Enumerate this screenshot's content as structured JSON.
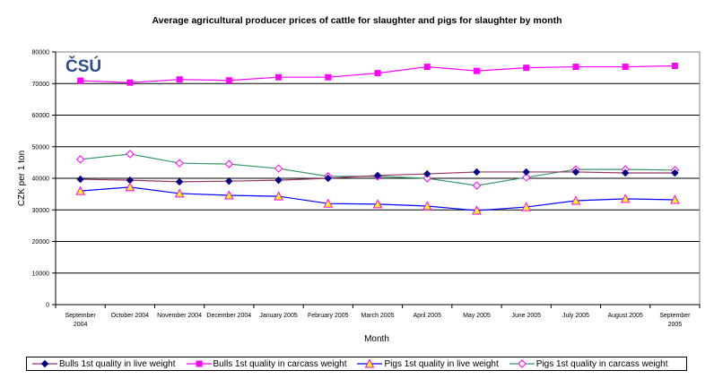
{
  "chart_data": {
    "type": "line",
    "title": "Average agricultural producer prices of cattle for slaughter and pigs for slaughter by month",
    "xlabel": "Month",
    "ylabel": "CZK per 1 ton",
    "ylim": [
      0,
      80000
    ],
    "yticks": [
      0,
      10000,
      20000,
      30000,
      40000,
      50000,
      60000,
      70000,
      80000
    ],
    "grid": true,
    "legend_position": "bottom",
    "logo_text": "ČSÚ",
    "categories": [
      [
        "September",
        "2004"
      ],
      [
        "October 2004"
      ],
      [
        "November 2004"
      ],
      [
        "December 2004"
      ],
      [
        "January 2005"
      ],
      [
        "February 2005"
      ],
      [
        "March 2005"
      ],
      [
        "April 2005"
      ],
      [
        "May 2005"
      ],
      [
        "June 2005"
      ],
      [
        "July 2005"
      ],
      [
        "August 2005"
      ],
      [
        "September",
        "2005"
      ]
    ],
    "series": [
      {
        "name": "Bulls 1st quality in live weight",
        "line_color": "#993366",
        "marker": "diamond",
        "marker_color": "#000080",
        "values": [
          39700,
          39400,
          38900,
          39100,
          39400,
          40000,
          40900,
          41400,
          42000,
          42000,
          42000,
          41700,
          41700
        ]
      },
      {
        "name": "Bulls 1st quality in carcass weight",
        "line_color": "#FF00FF",
        "marker": "square",
        "marker_color": "#FF00FF",
        "values": [
          70900,
          70300,
          71300,
          71000,
          72000,
          72000,
          73300,
          75300,
          74000,
          75000,
          75300,
          75300,
          75600
        ]
      },
      {
        "name": "Pigs 1st quality in live weight",
        "line_color": "#0000FF",
        "marker": "triangle",
        "marker_color": "#FFFF00",
        "marker_stroke": "#FF00FF",
        "values": [
          36000,
          37200,
          35200,
          34600,
          34300,
          32000,
          31800,
          31200,
          29800,
          30900,
          32900,
          33500,
          33200
        ]
      },
      {
        "name": "Pigs 1st quality in carcass weight",
        "line_color": "#339966",
        "marker": "diamond-open",
        "marker_color": "#FFFFFF",
        "marker_stroke": "#FF00FF",
        "values": [
          46000,
          47700,
          44800,
          44500,
          43100,
          40600,
          40600,
          40000,
          37700,
          40300,
          42800,
          42800,
          42600
        ]
      }
    ]
  }
}
